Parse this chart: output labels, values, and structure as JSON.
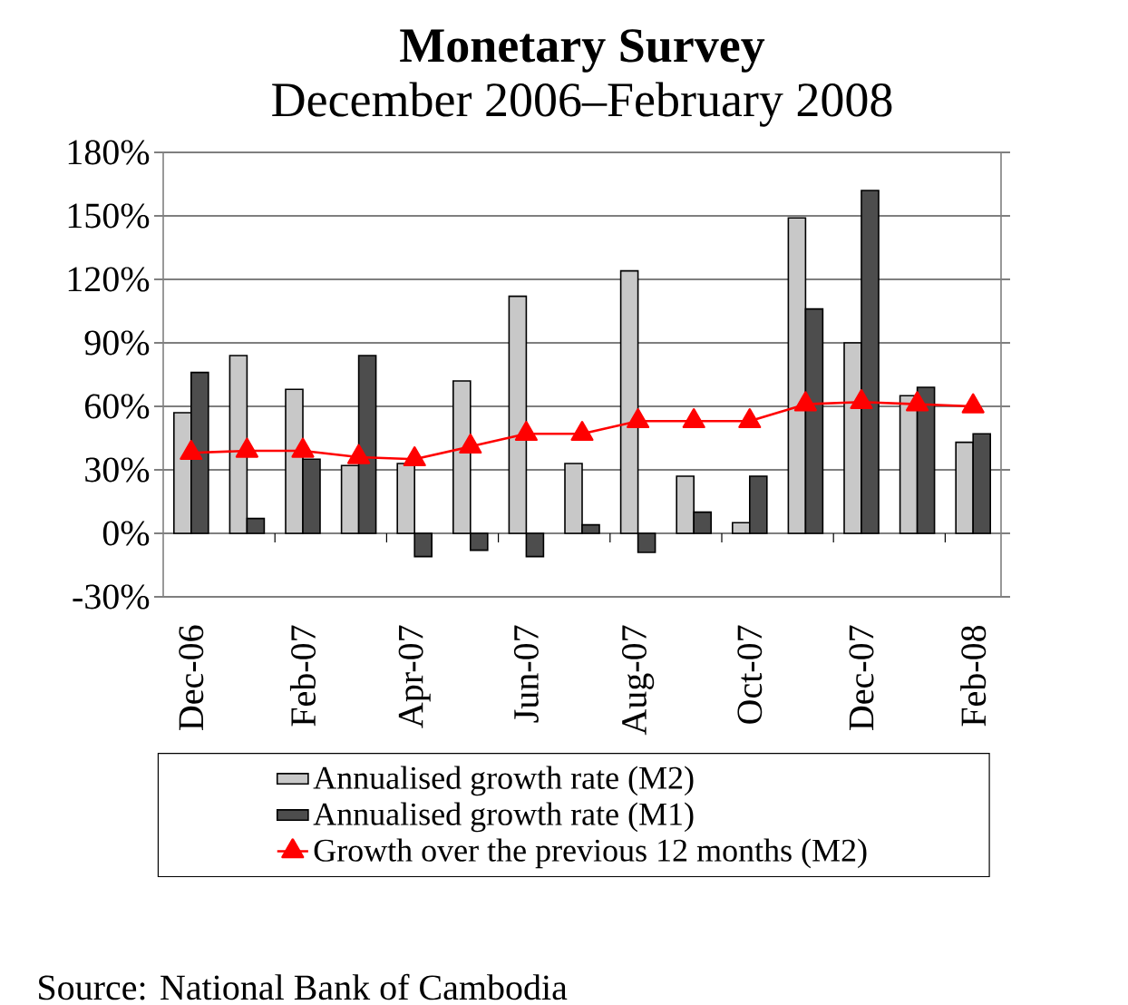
{
  "chart_data": {
    "type": "bar",
    "title": "Monetary Survey",
    "subtitle": "December 2006–February 2008",
    "categories": [
      "Dec-06",
      null,
      "Feb-07",
      null,
      "Apr-07",
      null,
      "Jun-07",
      null,
      "Aug-07",
      null,
      "Oct-07",
      null,
      "Dec-07",
      null,
      "Feb-08"
    ],
    "series": [
      {
        "name": "Annualised growth rate (M2)",
        "color": "#c8c8c8",
        "values": [
          57,
          84,
          68,
          32,
          33,
          72,
          112,
          33,
          124,
          27,
          5,
          149,
          90,
          65,
          43
        ]
      },
      {
        "name": "Annualised growth rate (M1)",
        "color": "#4d4d4d",
        "values": [
          76,
          7,
          35,
          84,
          -11,
          -8,
          -11,
          4,
          -9,
          10,
          27,
          106,
          162,
          69,
          47
        ]
      },
      {
        "name": "Growth over the previous 12 months (M2)",
        "type": "line",
        "color": "#ff0000",
        "values": [
          38,
          39,
          39,
          36,
          35,
          41,
          47,
          47,
          53,
          53,
          53,
          61,
          62,
          61,
          60
        ]
      }
    ],
    "ylim": [
      -30,
      180
    ],
    "yticks": [
      {
        "value": -30,
        "label": "-30%"
      },
      {
        "value": 0,
        "label": "0%"
      },
      {
        "value": 30,
        "label": "30%"
      },
      {
        "value": 60,
        "label": "60%"
      },
      {
        "value": 90,
        "label": "90%"
      },
      {
        "value": 120,
        "label": "120%"
      },
      {
        "value": 150,
        "label": "150%"
      },
      {
        "value": 180,
        "label": "180%"
      }
    ],
    "grid": "y",
    "legend": "bottom",
    "marker": "triangle",
    "annotations": [
      "Source: National Bank of Cambodia"
    ]
  }
}
